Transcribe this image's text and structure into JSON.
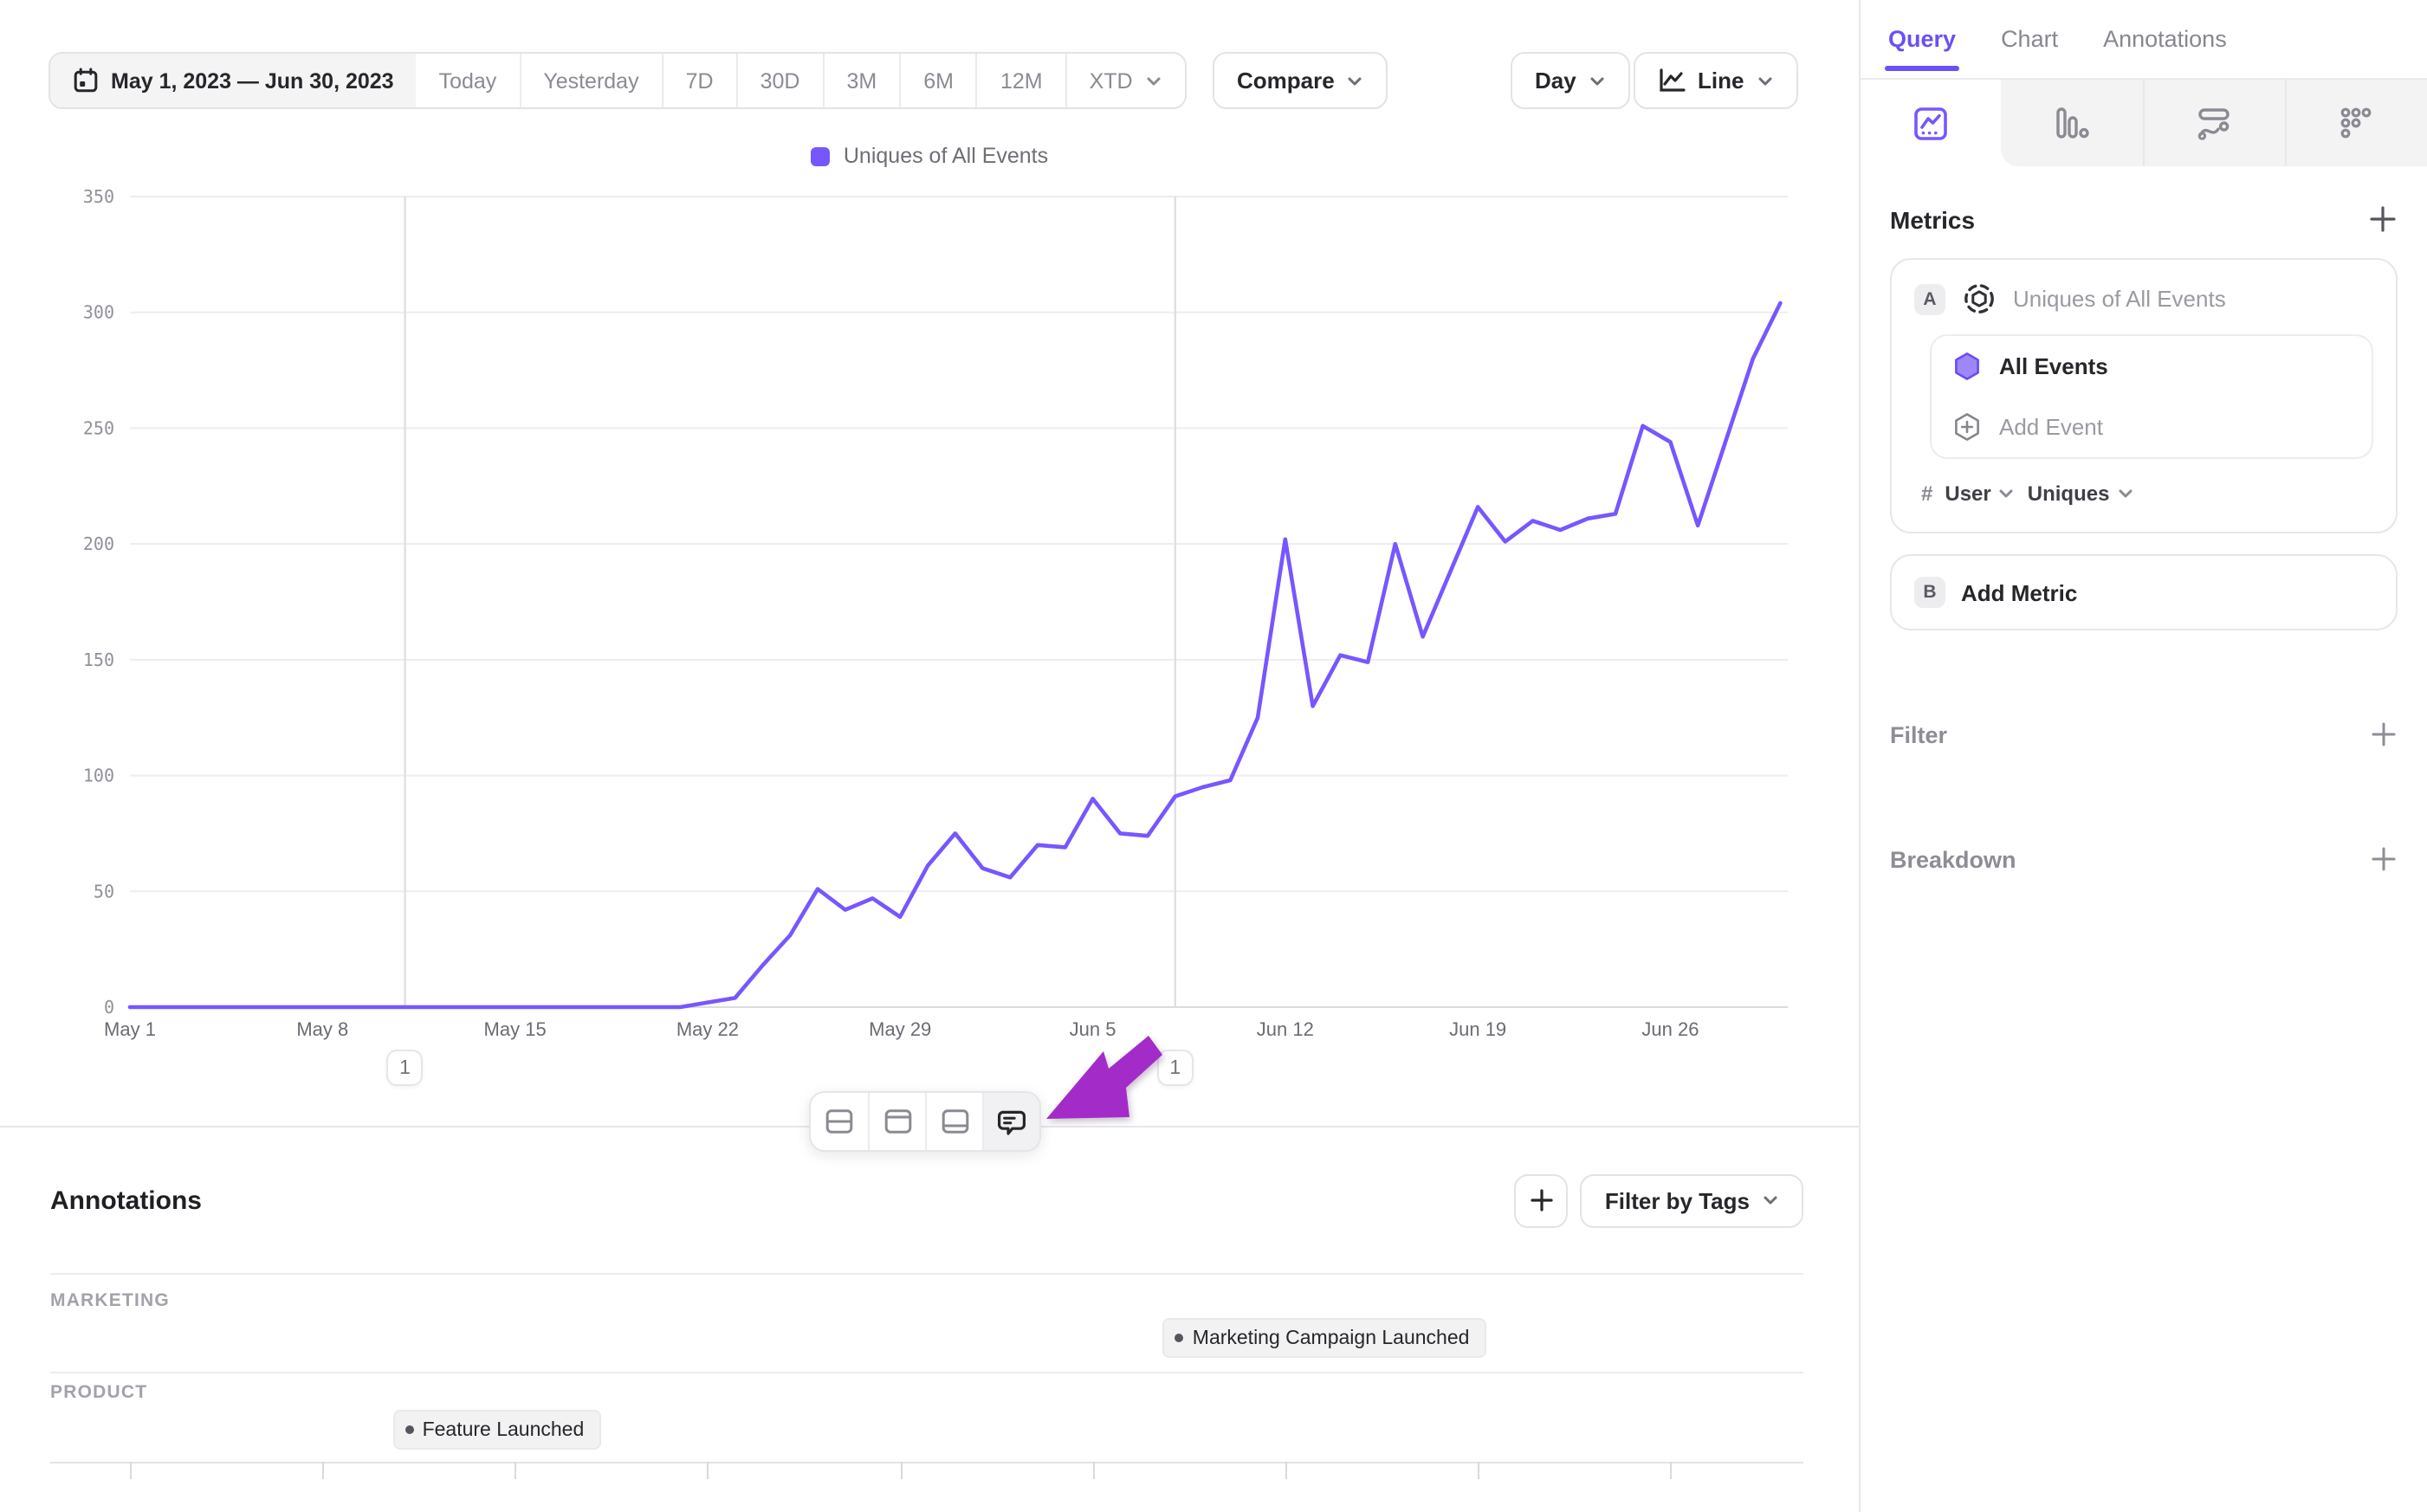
{
  "toolbar": {
    "date_range": "May 1, 2023 — Jun 30, 2023",
    "presets": [
      "Today",
      "Yesterday",
      "7D",
      "30D",
      "3M",
      "6M",
      "12M"
    ],
    "preset_dropdown": "XTD",
    "compare": "Compare",
    "granularity": "Day",
    "chart_type": "Line"
  },
  "chart_data": {
    "type": "line",
    "title": "Uniques of All Events",
    "legend_position": "top-center",
    "series_color": "#7856ff",
    "x_start": "May 1, 2023",
    "x_end": "Jun 30, 2023",
    "x_unit": "day",
    "x_tick_labels": [
      "May 1",
      "May 8",
      "May 15",
      "May 22",
      "May 29",
      "Jun 5",
      "Jun 12",
      "Jun 19",
      "Jun 26"
    ],
    "x_tick_day_indices": [
      0,
      7,
      14,
      21,
      28,
      35,
      42,
      49,
      56
    ],
    "ylim": [
      0,
      350
    ],
    "y_ticks": [
      0,
      50,
      100,
      150,
      200,
      250,
      300,
      350
    ],
    "grid": "horizontal",
    "series": [
      {
        "name": "Uniques of All Events",
        "values": [
          0,
          0,
          0,
          0,
          0,
          0,
          0,
          0,
          0,
          0,
          0,
          0,
          0,
          0,
          0,
          0,
          0,
          0,
          0,
          0,
          0,
          2,
          4,
          18,
          31,
          51,
          42,
          47,
          39,
          61,
          75,
          60,
          56,
          70,
          69,
          90,
          75,
          74,
          91,
          95,
          98,
          125,
          202,
          130,
          152,
          149,
          200,
          160,
          188,
          216,
          201,
          210,
          206,
          211,
          213,
          251,
          244,
          208,
          244,
          280,
          304
        ]
      }
    ],
    "event_markers": [
      {
        "day_index": 10,
        "badge": "1",
        "label": "Feature Launched"
      },
      {
        "day_index": 38,
        "badge": "1",
        "label": "Marketing Campaign Launched"
      }
    ]
  },
  "float_toolbar": {
    "icons": [
      "layout-split-horizontal-icon",
      "layout-top-panel-icon",
      "layout-bottom-panel-icon",
      "annotation-comment-icon"
    ],
    "active": "annotation-comment-icon"
  },
  "sidebar": {
    "tabs": [
      "Query",
      "Chart",
      "Annotations"
    ],
    "active_tab": "Query",
    "view_icons": [
      "insights-line-icon",
      "bar-chart-icon",
      "flow-icon",
      "grid-dots-icon"
    ],
    "metrics": {
      "title": "Metrics",
      "metric_a": {
        "badge": "A",
        "title": "Uniques of All Events",
        "events": [
          {
            "icon": "hexagon-icon",
            "label": "All Events"
          }
        ],
        "add_event": "Add Event",
        "aggregation": {
          "prefix": "#",
          "entity": "User",
          "measure": "Uniques"
        }
      },
      "metric_b": {
        "badge": "B",
        "label": "Add Metric"
      }
    },
    "filter": {
      "label": "Filter"
    },
    "breakdown": {
      "label": "Breakdown"
    }
  },
  "annotations_panel": {
    "title": "Annotations",
    "filter_by_tags": "Filter by Tags",
    "groups": [
      {
        "label": "MARKETING",
        "chips": [
          {
            "label": "Marketing Campaign Launched",
            "day_index": 38
          }
        ]
      },
      {
        "label": "PRODUCT",
        "chips": [
          {
            "label": "Feature Launched",
            "day_index": 10
          }
        ]
      }
    ]
  },
  "colors": {
    "accent": "#7856ff",
    "arrow": "#a32cc8",
    "gridline": "#ededf0",
    "marker_line": "#dfdfe4",
    "border": "#e7e7ea",
    "text_dark": "#26262b",
    "text_gray": "#87878f"
  }
}
